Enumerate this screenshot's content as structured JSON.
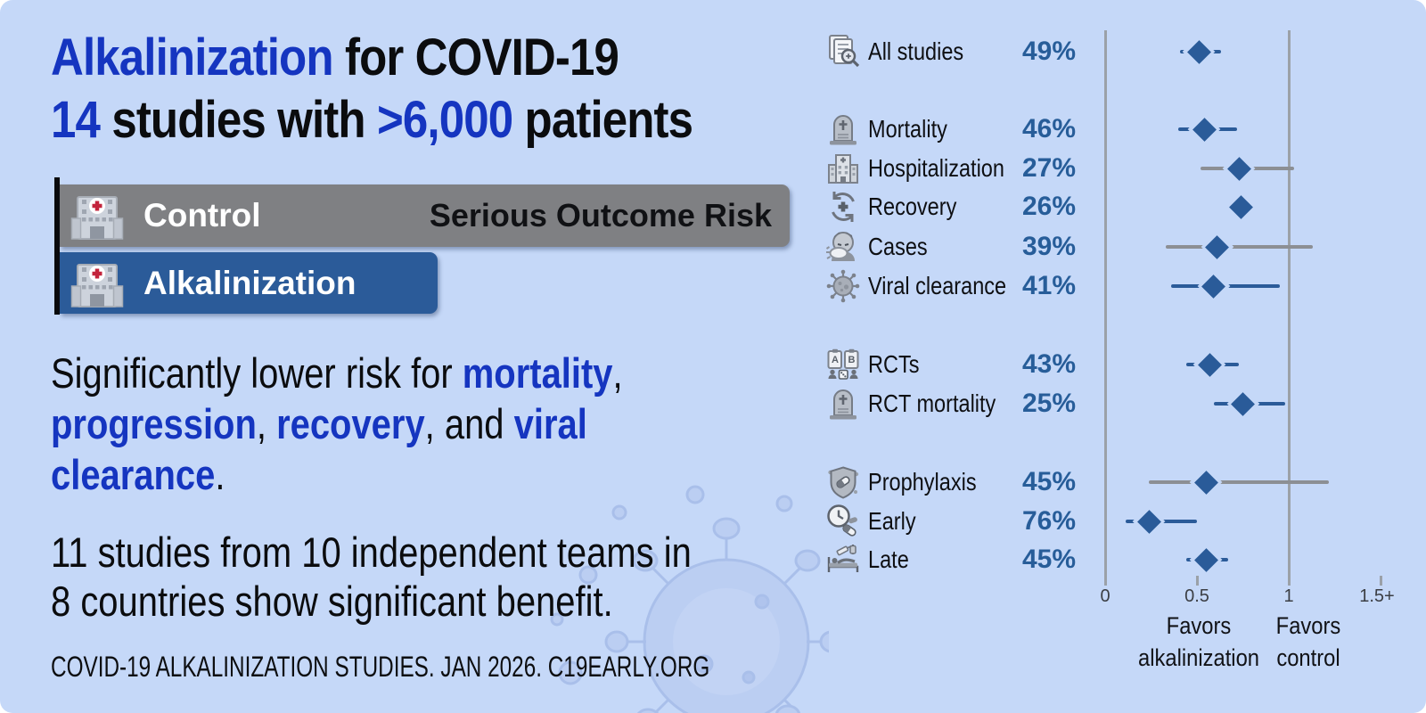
{
  "page": {
    "background": "#c5d8f8",
    "accent_blue": "#1535c0",
    "bar_blue": "#2b5b99",
    "bar_gray": "#7f8083",
    "pct_blue": "#275d99",
    "ci_gray": "#8c8f94",
    "axis_gray": "#9ba1a8"
  },
  "header": {
    "title_line1": [
      {
        "t": "Alkalinization",
        "hl": true
      },
      {
        "t": " for COVID-19"
      }
    ],
    "title_line2": [
      {
        "t": "14",
        "hl": true
      },
      {
        "t": " studies with "
      },
      {
        "t": ">6,000",
        "hl": true
      },
      {
        "t": " patients"
      }
    ]
  },
  "bars": {
    "control_label": "Control",
    "control_note": "Serious Outcome Risk",
    "treatment_label": "Alkalinization",
    "control_icon": "hospital-icon",
    "treatment_icon": "hospital-icon"
  },
  "body": {
    "para1_lines": [
      [
        {
          "t": "Significantly lower risk for "
        },
        {
          "t": "mortality",
          "hl": true
        },
        {
          "t": ","
        }
      ],
      [
        {
          "t": "progression",
          "hl": true
        },
        {
          "t": ", "
        },
        {
          "t": "recovery",
          "hl": true
        },
        {
          "t": ", and "
        },
        {
          "t": "viral",
          "hl": true
        }
      ],
      [
        {
          "t": "clearance",
          "hl": true
        },
        {
          "t": "."
        }
      ]
    ],
    "para2_lines": [
      "11 studies from 10 independent teams in",
      "8 countries show significant benefit."
    ]
  },
  "footer": {
    "text": "COVID-19 ALKALINIZATION STUDIES. JAN 2026. C19EARLY.ORG"
  },
  "chart_data": {
    "type": "forest",
    "title": "Serious outcome risk, alkalinization vs. control",
    "x_axis": {
      "tick_labels": [
        "0",
        "0.5",
        "1",
        "1.5+"
      ],
      "tick_values": [
        0,
        0.5,
        1,
        1.5
      ],
      "gridline_values": [
        0,
        1
      ],
      "range": [
        0,
        1.6
      ]
    },
    "legend": {
      "favors_left_line1": "Favors",
      "favors_left_line2": "alkalinization",
      "favors_right_line1": "Favors",
      "favors_right_line2": "control"
    },
    "rows": [
      {
        "label": "All studies",
        "improvement": "49%",
        "icon": "studies-magnifier-icon",
        "value": 0.51,
        "lo": 0.41,
        "hi": 0.63,
        "significant": true,
        "group": 0
      },
      {
        "label": "Mortality",
        "improvement": "46%",
        "icon": "tombstone-icon",
        "value": 0.54,
        "lo": 0.4,
        "hi": 0.72,
        "significant": true,
        "group": 1
      },
      {
        "label": "Hospitalization",
        "improvement": "27%",
        "icon": "hospital-gray-icon",
        "value": 0.73,
        "lo": 0.52,
        "hi": 1.03,
        "significant": false,
        "group": 1
      },
      {
        "label": "Recovery",
        "improvement": "26%",
        "icon": "recovery-arrows-icon",
        "value": 0.74,
        "lo": 0.74,
        "hi": 0.74,
        "significant": true,
        "group": 1
      },
      {
        "label": "Cases",
        "improvement": "39%",
        "icon": "sneezing-person-icon",
        "value": 0.61,
        "lo": 0.33,
        "hi": 1.13,
        "significant": false,
        "group": 1
      },
      {
        "label": "Viral clearance",
        "improvement": "41%",
        "icon": "virus-icon",
        "value": 0.59,
        "lo": 0.36,
        "hi": 0.95,
        "significant": true,
        "group": 1
      },
      {
        "label": "RCTs",
        "improvement": "43%",
        "icon": "rct-clipboards-icon",
        "value": 0.57,
        "lo": 0.44,
        "hi": 0.73,
        "significant": true,
        "group": 2
      },
      {
        "label": "RCT mortality",
        "improvement": "25%",
        "icon": "tombstone-icon",
        "value": 0.75,
        "lo": 0.59,
        "hi": 0.98,
        "significant": true,
        "group": 2
      },
      {
        "label": "Prophylaxis",
        "improvement": "45%",
        "icon": "shield-pills-icon",
        "value": 0.55,
        "lo": 0.24,
        "hi": 1.22,
        "significant": false,
        "group": 3
      },
      {
        "label": "Early",
        "improvement": "76%",
        "icon": "clock-pills-icon",
        "value": 0.24,
        "lo": 0.11,
        "hi": 0.5,
        "significant": true,
        "group": 3
      },
      {
        "label": "Late",
        "improvement": "45%",
        "icon": "hospital-bed-icon",
        "value": 0.55,
        "lo": 0.44,
        "hi": 0.67,
        "significant": true,
        "group": 3
      }
    ]
  }
}
